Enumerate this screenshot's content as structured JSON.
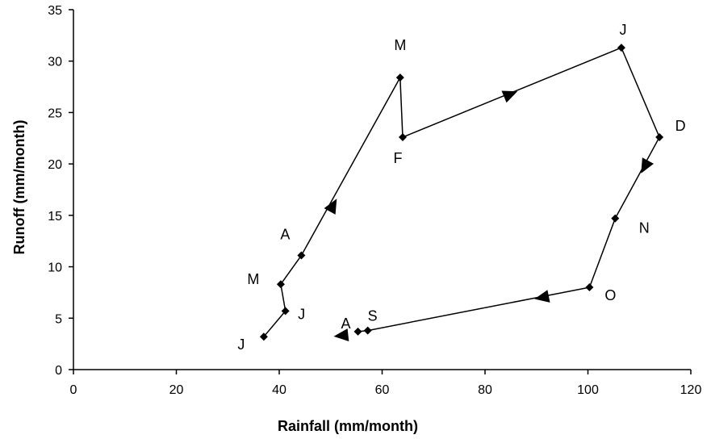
{
  "chart_data": {
    "type": "scatter",
    "title": "",
    "xlabel": "Rainfall (mm/month)",
    "ylabel": "Runoff (mm/month)",
    "xlim": [
      0,
      120
    ],
    "ylim": [
      0,
      35
    ],
    "xticks": [
      0,
      20,
      40,
      60,
      80,
      100,
      120
    ],
    "yticks": [
      0,
      5,
      10,
      15,
      20,
      25,
      30,
      35
    ],
    "grid": false,
    "connected": true,
    "series": [
      {
        "points": [
          {
            "label": "J",
            "x": 37,
            "y": 3.2
          },
          {
            "label": "J",
            "x": 41.2,
            "y": 5.7
          },
          {
            "label": "M",
            "x": 40.3,
            "y": 8.3
          },
          {
            "label": "A",
            "x": 44.3,
            "y": 11.1
          },
          {
            "label": "M",
            "x": 63.5,
            "y": 28.4
          },
          {
            "label": "F",
            "x": 64,
            "y": 22.6
          },
          {
            "label": "J",
            "x": 106.5,
            "y": 31.3
          },
          {
            "label": "D",
            "x": 113.9,
            "y": 22.6
          },
          {
            "label": "N",
            "x": 105.3,
            "y": 14.7
          },
          {
            "label": "O",
            "x": 100.3,
            "y": 8.0
          },
          {
            "label": "S",
            "x": 57.2,
            "y": 3.8
          },
          {
            "label": "A",
            "x": 55.3,
            "y": 3.7
          }
        ]
      }
    ],
    "direction_arrows": [
      {
        "x": 50.5,
        "y": 16.0
      },
      {
        "x": 85.0,
        "y": 26.8
      },
      {
        "x": 111.0,
        "y": 19.7
      },
      {
        "x": 91.0,
        "y": 7.0
      },
      {
        "x": 52.0,
        "y": 3.3
      }
    ],
    "colors": {
      "line": "#000000",
      "marker": "#000000"
    }
  }
}
